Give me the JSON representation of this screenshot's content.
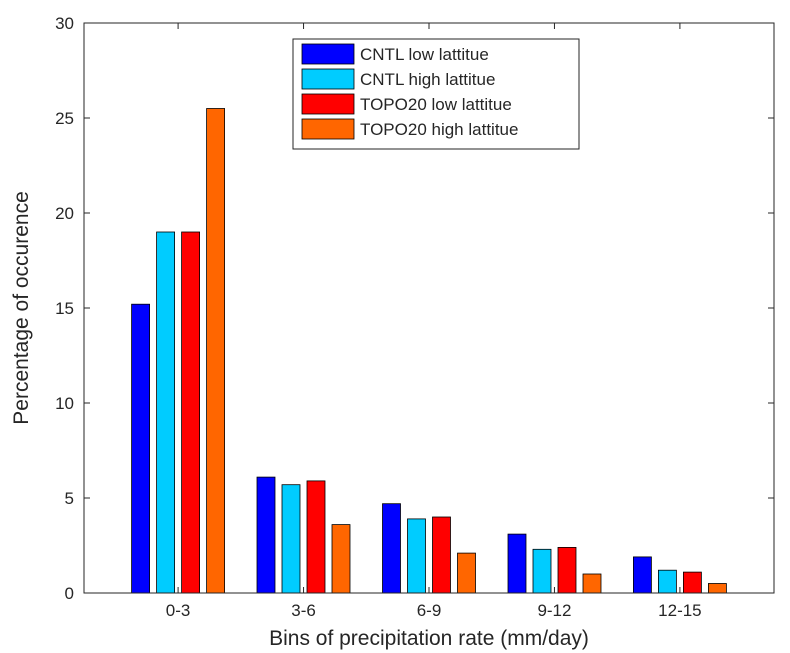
{
  "chart_data": {
    "type": "bar",
    "title": "",
    "xlabel": "Bins of precipitation rate (mm/day)",
    "ylabel": "Percentage of occurence",
    "categories": [
      "0-3",
      "3-6",
      "6-9",
      "9-12",
      "12-15"
    ],
    "ylim": [
      0,
      30
    ],
    "yticks": [
      0,
      5,
      10,
      15,
      20,
      25,
      30
    ],
    "grid": false,
    "legend_position": "top-center",
    "series": [
      {
        "name": "CNTL low lattitue",
        "color": "#0000ff",
        "values": [
          15.2,
          6.1,
          4.7,
          3.1,
          1.9
        ]
      },
      {
        "name": "CNTL high lattitue",
        "color": "#00ccff",
        "values": [
          19.0,
          5.7,
          3.9,
          2.3,
          1.2
        ]
      },
      {
        "name": "TOPO20 low lattitue",
        "color": "#ff0000",
        "values": [
          19.0,
          5.9,
          4.0,
          2.4,
          1.1
        ]
      },
      {
        "name": "TOPO20 high lattitue",
        "color": "#ff6600",
        "values": [
          25.5,
          3.6,
          2.1,
          1.0,
          0.5
        ]
      }
    ]
  }
}
